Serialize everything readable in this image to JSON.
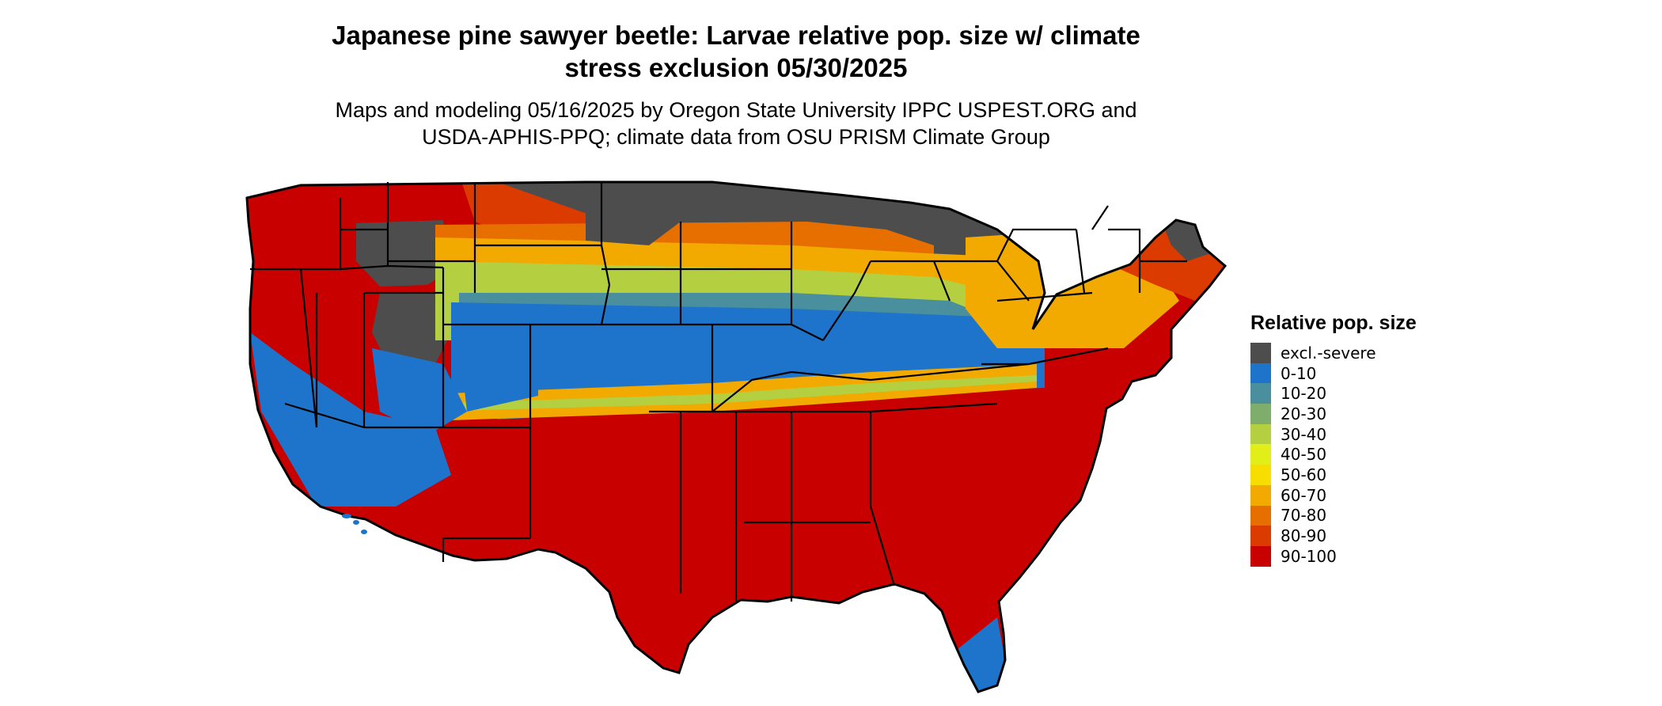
{
  "title_line1": "Japanese pine sawyer beetle: Larvae relative pop. size w/ climate",
  "title_line2": "stress exclusion 05/30/2025",
  "subtitle_line1": "Maps and modeling 05/16/2025 by Oregon State University IPPC USPEST.ORG and",
  "subtitle_line2": "USDA-APHIS-PPQ; climate data from OSU PRISM Climate Group",
  "legend": {
    "title": "Relative pop. size",
    "items": [
      {
        "label": "excl.-severe",
        "color": "#4d4d4d"
      },
      {
        "label": "0-10",
        "color": "#1e74cb"
      },
      {
        "label": "10-20",
        "color": "#4a8f9e"
      },
      {
        "label": "20-30",
        "color": "#7fae6c"
      },
      {
        "label": "30-40",
        "color": "#b4d040"
      },
      {
        "label": "40-50",
        "color": "#e2ee18"
      },
      {
        "label": "50-60",
        "color": "#f7de00"
      },
      {
        "label": "60-70",
        "color": "#f2a900"
      },
      {
        "label": "70-80",
        "color": "#e66f00"
      },
      {
        "label": "80-90",
        "color": "#dc3b00"
      },
      {
        "label": "90-100",
        "color": "#c90000"
      }
    ]
  }
}
